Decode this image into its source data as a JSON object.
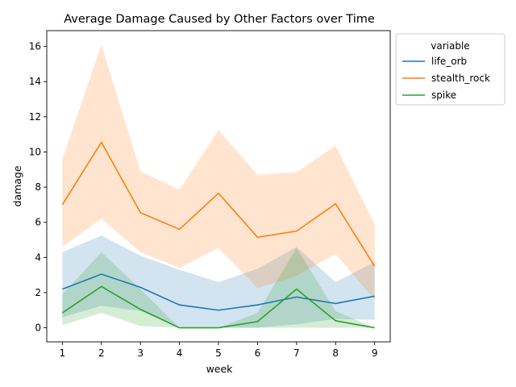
{
  "chart_data": {
    "type": "line",
    "title": "Average Damage Caused by Other Factors over Time",
    "xlabel": "week",
    "ylabel": "damage",
    "x": [
      1,
      2,
      3,
      4,
      5,
      6,
      7,
      8,
      9
    ],
    "xlim": [
      0.6,
      9.4
    ],
    "ylim": [
      -0.8,
      16.9
    ],
    "yticks": [
      0,
      2,
      4,
      6,
      8,
      10,
      12,
      14,
      16
    ],
    "grid": false,
    "legend": {
      "title": "variable",
      "placement": "upper-right-outside"
    },
    "series": [
      {
        "name": "life_orb",
        "color": "#1f77b4",
        "values": [
          2.2,
          3.05,
          2.3,
          1.3,
          1.0,
          1.3,
          1.75,
          1.38,
          1.8
        ],
        "ci_low": [
          0.6,
          1.25,
          0.95,
          0.0,
          0.0,
          0.0,
          0.2,
          0.5,
          0.45
        ],
        "ci_high": [
          4.3,
          5.25,
          4.1,
          3.3,
          2.6,
          3.35,
          4.6,
          2.6,
          3.75
        ]
      },
      {
        "name": "stealth_rock",
        "color": "#ff7f0e",
        "values": [
          7.0,
          10.55,
          6.55,
          5.6,
          7.65,
          5.15,
          5.5,
          7.05,
          3.5
        ],
        "ci_low": [
          4.6,
          6.2,
          4.3,
          3.4,
          4.55,
          2.25,
          2.95,
          4.2,
          1.6
        ],
        "ci_high": [
          9.6,
          16.1,
          8.9,
          7.85,
          11.25,
          8.7,
          8.85,
          10.35,
          5.9
        ]
      },
      {
        "name": "spike",
        "color": "#2ca02c",
        "values": [
          0.85,
          2.35,
          1.05,
          0.0,
          0.0,
          0.35,
          2.2,
          0.4,
          0.0
        ],
        "ci_low": [
          0.15,
          0.85,
          0.1,
          0.0,
          0.0,
          0.0,
          0.0,
          0.0,
          0.0
        ],
        "ci_high": [
          1.9,
          4.3,
          2.2,
          0.0,
          0.0,
          0.85,
          4.55,
          0.95,
          0.0
        ]
      }
    ]
  }
}
